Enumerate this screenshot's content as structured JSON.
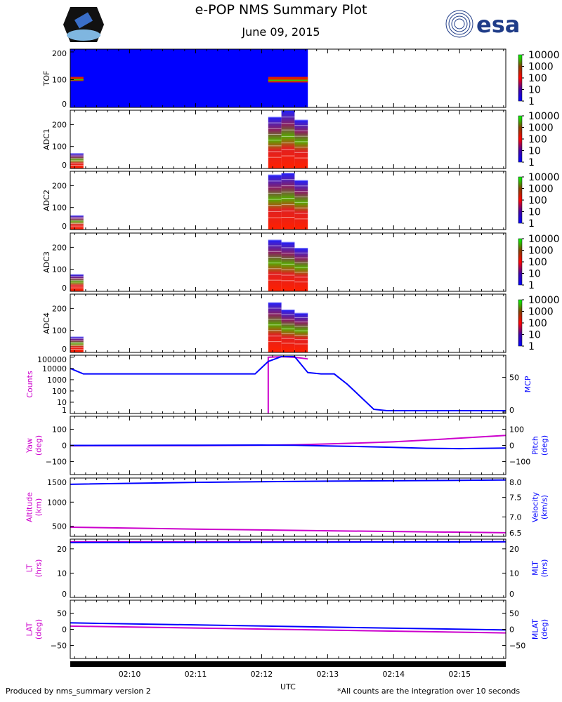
{
  "header": {
    "title": "e-POP NMS Summary Plot",
    "date": "June 09, 2015",
    "esa_logo": "esa"
  },
  "footer": {
    "left": "Produced by nms_summary version 2",
    "right": "*All counts are the integration over 10 seconds",
    "xlabel": "UTC"
  },
  "colors": {
    "magenta": "#cc00cc",
    "blue": "#0000ff"
  },
  "chart_data": {
    "type": "multi-panel time series / spectrogram",
    "x_range_min": [
      9.1,
      15.7
    ],
    "x_ticks": [
      {
        "v": 10,
        "label": "02:10"
      },
      {
        "v": 11,
        "label": "02:11"
      },
      {
        "v": 12,
        "label": "02:12"
      },
      {
        "v": 13,
        "label": "02:13"
      },
      {
        "v": 14,
        "label": "02:14"
      },
      {
        "v": 15,
        "label": "02:15"
      }
    ],
    "colorbar": {
      "labels": [
        "1",
        "10",
        "100",
        "1000",
        "10000"
      ]
    },
    "spectrograms": [
      {
        "label": "TOF",
        "ylim": [
          0,
          210
        ],
        "yticks": [
          0,
          100,
          200
        ],
        "blocks": [
          {
            "t": [
              9.1,
              12.7
            ],
            "top": 210,
            "kind": "bg"
          },
          {
            "t": [
              9.1,
              9.3
            ],
            "top": 110,
            "bottom": 95,
            "kind": "line"
          },
          {
            "t": [
              12.1,
              12.7
            ],
            "top": 110,
            "bottom": 90,
            "kind": "line"
          }
        ]
      },
      {
        "label": "ADC1",
        "ylim": [
          0,
          265
        ],
        "yticks": [
          0,
          100,
          200
        ],
        "blocks": [
          {
            "t": [
              9.1,
              9.3
            ],
            "top": 70
          },
          {
            "t": [
              12.1,
              12.3
            ],
            "top": 235
          },
          {
            "t": [
              12.3,
              12.5
            ],
            "top": 265
          },
          {
            "t": [
              12.5,
              12.7
            ],
            "top": 222
          }
        ]
      },
      {
        "label": "ADC2",
        "ylim": [
          0,
          265
        ],
        "yticks": [
          0,
          100,
          200
        ],
        "blocks": [
          {
            "t": [
              9.1,
              9.3
            ],
            "top": 65
          },
          {
            "t": [
              12.1,
              12.3
            ],
            "top": 250
          },
          {
            "t": [
              12.3,
              12.5
            ],
            "top": 258
          },
          {
            "t": [
              12.5,
              12.7
            ],
            "top": 225
          }
        ]
      },
      {
        "label": "ADC3",
        "ylim": [
          0,
          265
        ],
        "yticks": [
          0,
          100,
          200
        ],
        "blocks": [
          {
            "t": [
              9.1,
              9.3
            ],
            "top": 78
          },
          {
            "t": [
              12.1,
              12.3
            ],
            "top": 235
          },
          {
            "t": [
              12.3,
              12.5
            ],
            "top": 225
          },
          {
            "t": [
              12.5,
              12.7
            ],
            "top": 198
          }
        ]
      },
      {
        "label": "ADC4",
        "ylim": [
          0,
          265
        ],
        "yticks": [
          0,
          100,
          200
        ],
        "blocks": [
          {
            "t": [
              9.1,
              9.3
            ],
            "top": 72
          },
          {
            "t": [
              12.1,
              12.3
            ],
            "top": 228
          },
          {
            "t": [
              12.3,
              12.5
            ],
            "top": 195
          },
          {
            "t": [
              12.5,
              12.7
            ],
            "top": 180
          }
        ]
      }
    ],
    "line_panels": [
      {
        "left_label": "Counts",
        "right_label": "MCP",
        "left_log": true,
        "ylim_left": [
          1,
          150000
        ],
        "ylim_right": [
          -2,
          82
        ],
        "left_ticks": [
          [
            1,
            "1"
          ],
          [
            10,
            "10"
          ],
          [
            100,
            "100"
          ],
          [
            1000,
            "1000"
          ],
          [
            10000,
            "10000"
          ],
          [
            100000,
            "100000"
          ]
        ],
        "right_ticks": [
          [
            0,
            "0"
          ],
          [
            50,
            "50"
          ]
        ],
        "left_series": {
          "t": [
            12.1,
            12.1,
            12.3,
            12.5,
            12.7
          ],
          "v": [
            1,
            100000,
            110000,
            100000,
            70000
          ]
        },
        "right_series": {
          "t": [
            9.1,
            9.3,
            11.9,
            12.1,
            12.3,
            12.5,
            12.7,
            12.9,
            13.1,
            13.3,
            13.5,
            13.7,
            13.9,
            15.7
          ],
          "v": [
            63,
            55,
            55,
            73,
            80,
            80,
            57,
            55,
            55,
            40,
            22,
            4,
            2,
            2
          ]
        }
      },
      {
        "left_label": "Yaw\n(deg)",
        "right_label": "Pitch\n(deg)",
        "ylim_left": [
          -180,
          180
        ],
        "ylim_right": [
          -180,
          180
        ],
        "left_ticks": [
          [
            -100,
            "−100"
          ],
          [
            0,
            "0"
          ],
          [
            100,
            "100"
          ]
        ],
        "right_ticks": [
          [
            -100,
            "−100"
          ],
          [
            0,
            "0"
          ],
          [
            100,
            "100"
          ]
        ],
        "left_series": {
          "t": [
            9.1,
            11,
            12,
            12.5,
            13,
            13.5,
            14,
            14.5,
            15,
            15.7
          ],
          "v": [
            -2,
            -1,
            1,
            4,
            9,
            15,
            22,
            33,
            45,
            62
          ]
        },
        "right_series": {
          "t": [
            9.1,
            11,
            12,
            12.5,
            13,
            13.5,
            14,
            14.5,
            15,
            15.7
          ],
          "v": [
            0,
            1,
            2,
            1,
            -3,
            -7,
            -12,
            -18,
            -20,
            -16
          ]
        }
      },
      {
        "left_label": "Altitude\n(km)",
        "right_label": "Velocity\n(km/s)",
        "ylim_left": [
          290,
          1500
        ],
        "ylim_right": [
          6.5,
          8.0
        ],
        "left_ticks": [
          [
            500,
            "500"
          ],
          [
            1000,
            "1000"
          ],
          [
            1500,
            "1500"
          ]
        ],
        "right_ticks": [
          [
            6.5,
            "6.5"
          ],
          [
            7.0,
            "7.0"
          ],
          [
            7.5,
            "7.5"
          ],
          [
            8.0,
            "8.0"
          ]
        ],
        "left_series": {
          "t": [
            9.1,
            11,
            13,
            15.7
          ],
          "v": [
            480,
            440,
            405,
            365
          ]
        },
        "right_series": {
          "t": [
            9.1,
            11,
            13,
            15.7
          ],
          "v": [
            7.84,
            7.89,
            7.92,
            7.95
          ]
        }
      },
      {
        "left_label": "LT\n(hrs)",
        "right_label": "MLT\n(hrs)",
        "ylim_left": [
          0,
          24
        ],
        "ylim_right": [
          0,
          24
        ],
        "left_ticks": [
          [
            0,
            "0"
          ],
          [
            10,
            "10"
          ],
          [
            20,
            "20"
          ]
        ],
        "right_ticks": [
          [
            0,
            "0"
          ],
          [
            10,
            "10"
          ],
          [
            20,
            "20"
          ]
        ],
        "left_series": {
          "t": [
            9.1,
            15.7
          ],
          "v": [
            22.9,
            22.9
          ]
        },
        "right_series": {
          "t": [
            9.1,
            15.7
          ],
          "v": [
            22.6,
            22.9
          ]
        }
      },
      {
        "left_label": "LAT\n(deg)",
        "right_label": "MLAT\n(deg)",
        "ylim_left": [
          -90,
          90
        ],
        "ylim_right": [
          -90,
          90
        ],
        "left_ticks": [
          [
            -50,
            "−50"
          ],
          [
            0,
            "0"
          ],
          [
            50,
            "50"
          ]
        ],
        "right_ticks": [
          [
            -50,
            "−50"
          ],
          [
            0,
            "0"
          ],
          [
            50,
            "50"
          ]
        ],
        "left_series": {
          "t": [
            9.1,
            15.7
          ],
          "v": [
            10,
            -11
          ]
        },
        "right_series": {
          "t": [
            9.1,
            15.7
          ],
          "v": [
            20,
            -2
          ]
        }
      }
    ]
  }
}
